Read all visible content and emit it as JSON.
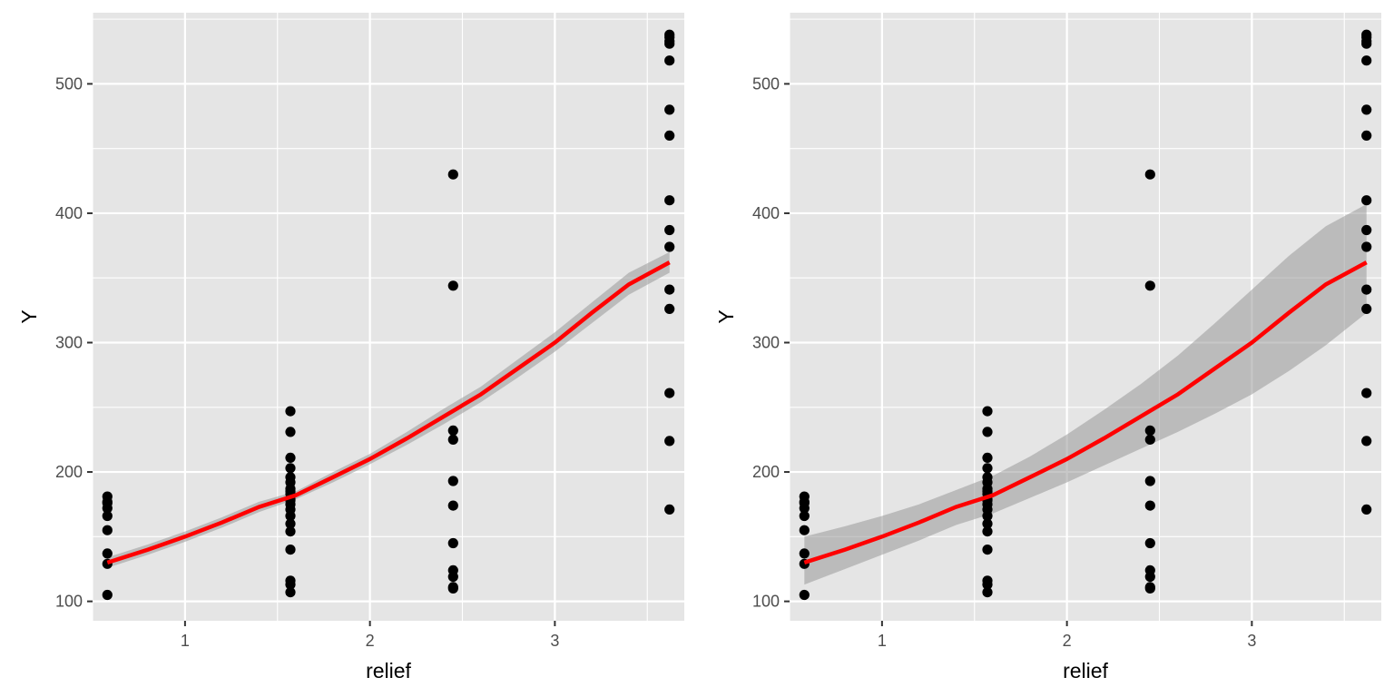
{
  "chart_data": [
    {
      "type": "scatter",
      "title": "",
      "xlabel": "relief",
      "ylabel": "Y",
      "xlim": [
        0.5,
        3.7
      ],
      "ylim": [
        85,
        555
      ],
      "x_ticks": [
        1,
        2,
        3
      ],
      "x_tick_labels": [
        "1",
        "2",
        "3"
      ],
      "y_ticks": [
        100,
        200,
        300,
        400,
        500
      ],
      "y_tick_labels": [
        "100",
        "200",
        "300",
        "400",
        "500"
      ],
      "grid": true,
      "background": "#e5e5e5",
      "point_color": "#000000",
      "fit_color": "#ff0000",
      "band_color": "#999999",
      "points": {
        "x": [
          0.58,
          0.58,
          0.58,
          0.58,
          0.58,
          0.58,
          0.58,
          0.58,
          0.58,
          1.57,
          1.57,
          1.57,
          1.57,
          1.57,
          1.57,
          1.57,
          1.57,
          1.57,
          1.57,
          1.57,
          1.57,
          1.57,
          1.57,
          1.57,
          1.57,
          1.57,
          1.57,
          1.57,
          1.57,
          2.45,
          2.45,
          2.45,
          2.45,
          2.45,
          2.45,
          2.45,
          2.45,
          2.45,
          2.45,
          2.45,
          3.62,
          3.62,
          3.62,
          3.62,
          3.62,
          3.62,
          3.62,
          3.62,
          3.62,
          3.62,
          3.62,
          3.62,
          3.62,
          3.62,
          3.62
        ],
        "y": [
          181,
          177,
          172,
          166,
          155,
          137,
          129,
          105,
          176,
          247,
          231,
          211,
          203,
          196,
          192,
          187,
          183,
          179,
          175,
          171,
          166,
          160,
          154,
          140,
          116,
          113,
          107,
          185,
          178,
          430,
          344,
          232,
          225,
          193,
          174,
          145,
          124,
          119,
          110,
          111,
          538,
          533,
          518,
          480,
          460,
          410,
          387,
          374,
          341,
          326,
          261,
          224,
          171,
          536,
          531
        ]
      },
      "fit": {
        "x": [
          0.58,
          0.8,
          1.0,
          1.2,
          1.4,
          1.6,
          1.8,
          2.0,
          2.2,
          2.4,
          2.6,
          2.8,
          3.0,
          3.2,
          3.4,
          3.62
        ],
        "y": [
          130,
          140,
          150,
          161,
          173,
          182,
          196,
          210,
          226,
          243,
          260,
          280,
          300,
          323,
          345,
          362
        ]
      },
      "band": {
        "lower": [
          126,
          136,
          146,
          157,
          169,
          179,
          192,
          206,
          221,
          237,
          254,
          273,
          293,
          315,
          337,
          354
        ],
        "upper": [
          134,
          144,
          154,
          165,
          177,
          185,
          200,
          214,
          231,
          249,
          266,
          287,
          308,
          331,
          354,
          370
        ]
      }
    },
    {
      "type": "scatter",
      "title": "",
      "xlabel": "relief",
      "ylabel": "Y",
      "xlim": [
        0.5,
        3.7
      ],
      "ylim": [
        85,
        555
      ],
      "x_ticks": [
        1,
        2,
        3
      ],
      "x_tick_labels": [
        "1",
        "2",
        "3"
      ],
      "y_ticks": [
        100,
        200,
        300,
        400,
        500
      ],
      "y_tick_labels": [
        "100",
        "200",
        "300",
        "400",
        "500"
      ],
      "grid": true,
      "background": "#e5e5e5",
      "point_color": "#000000",
      "fit_color": "#ff0000",
      "band_color": "#999999",
      "points": {
        "x": [
          0.58,
          0.58,
          0.58,
          0.58,
          0.58,
          0.58,
          0.58,
          0.58,
          0.58,
          1.57,
          1.57,
          1.57,
          1.57,
          1.57,
          1.57,
          1.57,
          1.57,
          1.57,
          1.57,
          1.57,
          1.57,
          1.57,
          1.57,
          1.57,
          1.57,
          1.57,
          1.57,
          1.57,
          1.57,
          2.45,
          2.45,
          2.45,
          2.45,
          2.45,
          2.45,
          2.45,
          2.45,
          2.45,
          2.45,
          2.45,
          3.62,
          3.62,
          3.62,
          3.62,
          3.62,
          3.62,
          3.62,
          3.62,
          3.62,
          3.62,
          3.62,
          3.62,
          3.62,
          3.62,
          3.62
        ],
        "y": [
          181,
          177,
          172,
          166,
          155,
          137,
          129,
          105,
          176,
          247,
          231,
          211,
          203,
          196,
          192,
          187,
          183,
          179,
          175,
          171,
          166,
          160,
          154,
          140,
          116,
          113,
          107,
          185,
          178,
          430,
          344,
          232,
          225,
          193,
          174,
          145,
          124,
          119,
          110,
          111,
          538,
          533,
          518,
          480,
          460,
          410,
          387,
          374,
          341,
          326,
          261,
          224,
          171,
          536,
          531
        ]
      },
      "fit": {
        "x": [
          0.58,
          0.8,
          1.0,
          1.2,
          1.4,
          1.6,
          1.8,
          2.0,
          2.2,
          2.4,
          2.6,
          2.8,
          3.0,
          3.2,
          3.4,
          3.62
        ],
        "y": [
          130,
          140,
          150,
          161,
          173,
          182,
          196,
          210,
          226,
          243,
          260,
          280,
          300,
          323,
          345,
          362
        ]
      },
      "band": {
        "lower": [
          113,
          125,
          136,
          147,
          159,
          168,
          180,
          192,
          205,
          218,
          231,
          245,
          260,
          278,
          298,
          323
        ],
        "upper": [
          150,
          158,
          166,
          175,
          186,
          197,
          212,
          229,
          248,
          268,
          290,
          315,
          341,
          367,
          390,
          407
        ]
      }
    }
  ]
}
